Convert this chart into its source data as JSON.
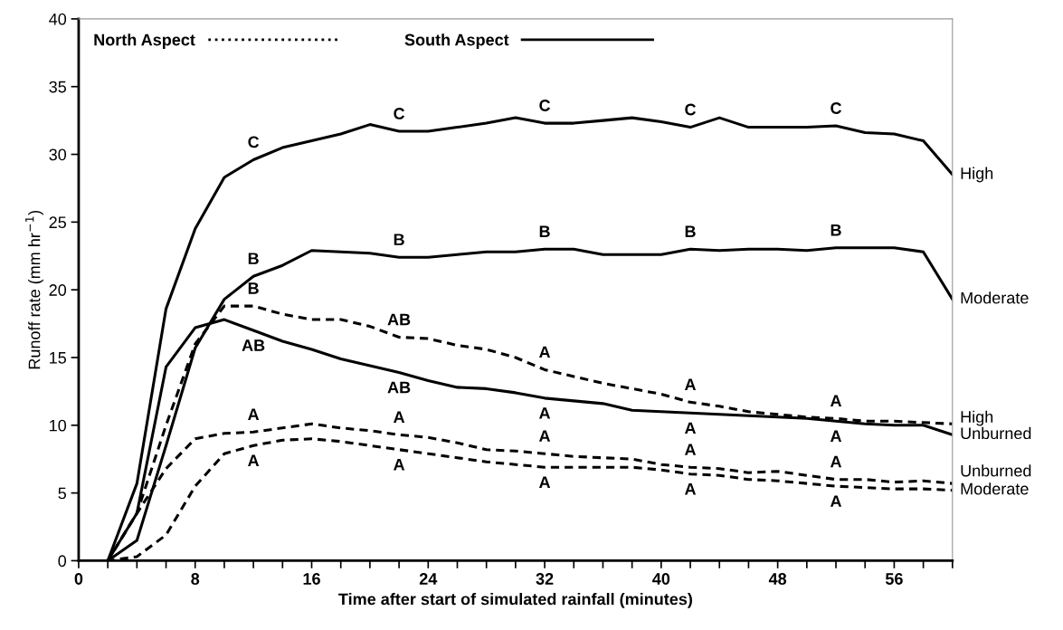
{
  "chart_data": {
    "type": "line",
    "xlabel": "Time after start of simulated rainfall (minutes)",
    "ylabel": "Runoff rate (mm hr$^{−1}$)",
    "x": [
      0,
      2,
      4,
      6,
      8,
      10,
      12,
      14,
      16,
      18,
      20,
      22,
      24,
      26,
      28,
      30,
      32,
      34,
      36,
      38,
      40,
      42,
      44,
      46,
      48,
      50,
      52,
      54,
      56,
      58,
      60
    ],
    "series": [
      {
        "name": "High",
        "color": "#000000",
        "line_style": "dashed",
        "values": [
          0,
          0,
          3.5,
          10,
          16,
          18.8,
          18.8,
          18.2,
          17.8,
          17.8,
          17.3,
          16.5,
          16.4,
          15.9,
          15.6,
          15.0,
          14.1,
          13.6,
          13.1,
          12.7,
          12.3,
          11.7,
          11.4,
          11.0,
          10.8,
          10.6,
          10.5,
          10.3,
          10.3,
          10.2,
          10.1
        ]
      },
      {
        "name": "Unburned",
        "color": "#000000",
        "line_style": "dashed",
        "values": [
          0,
          0,
          3.5,
          6.8,
          9.0,
          9.4,
          9.5,
          9.8,
          10.1,
          9.8,
          9.6,
          9.3,
          9.1,
          8.7,
          8.2,
          8.1,
          7.9,
          7.7,
          7.6,
          7.5,
          7.1,
          6.9,
          6.8,
          6.5,
          6.6,
          6.3,
          6.0,
          6.0,
          5.8,
          5.9,
          5.7
        ]
      },
      {
        "name": "Moderate",
        "color": "#000000",
        "line_style": "dashed",
        "values": [
          0,
          0,
          0.3,
          1.9,
          5.5,
          7.9,
          8.5,
          8.9,
          9.0,
          8.8,
          8.5,
          8.2,
          7.9,
          7.6,
          7.3,
          7.1,
          6.9,
          6.9,
          6.9,
          6.9,
          6.7,
          6.4,
          6.3,
          6.0,
          5.9,
          5.7,
          5.5,
          5.4,
          5.3,
          5.3,
          5.2
        ]
      },
      {
        "name": "High",
        "color": "#000000",
        "line_style": "solid",
        "values": [
          0,
          0,
          5.7,
          18.6,
          24.5,
          28.3,
          29.6,
          30.5,
          31.0,
          31.5,
          32.2,
          31.7,
          31.7,
          32.0,
          32.3,
          32.7,
          32.3,
          32.3,
          32.5,
          32.7,
          32.4,
          32.0,
          32.7,
          32.0,
          32.0,
          32.0,
          32.1,
          31.6,
          31.5,
          31.0,
          28.5
        ]
      },
      {
        "name": "Moderate",
        "color": "#000000",
        "line_style": "solid",
        "values": [
          0,
          0,
          1.5,
          8.5,
          15.7,
          19.3,
          21.0,
          21.8,
          22.9,
          22.8,
          22.7,
          22.4,
          22.4,
          22.6,
          22.8,
          22.8,
          23.0,
          23.0,
          22.6,
          22.6,
          22.6,
          23.0,
          22.9,
          23.0,
          23.0,
          22.9,
          23.1,
          23.1,
          23.1,
          22.8,
          19.3
        ]
      },
      {
        "name": "Unburned",
        "color": "#000000",
        "line_style": "solid",
        "values": [
          0,
          0,
          3.5,
          14.3,
          17.2,
          17.8,
          17.0,
          16.2,
          15.6,
          14.9,
          14.4,
          13.9,
          13.3,
          12.8,
          12.7,
          12.4,
          12.0,
          11.8,
          11.6,
          11.1,
          11.0,
          10.9,
          10.8,
          10.7,
          10.6,
          10.5,
          10.3,
          10.1,
          10.0,
          10.0,
          9.3
        ]
      }
    ],
    "xlim": [
      0,
      60
    ],
    "xticks": [
      0,
      {
        "value": 2,
        "label": null
      },
      {
        "value": 4,
        "label": null
      },
      {
        "value": 6,
        "label": null
      },
      8,
      {
        "value": 10,
        "label": null
      },
      {
        "value": 12,
        "label": null
      },
      {
        "value": 14,
        "label": null
      },
      16,
      {
        "value": 18,
        "label": null
      },
      {
        "value": 20,
        "label": null
      },
      {
        "value": 22,
        "label": null
      },
      24,
      {
        "value": 26,
        "label": null
      },
      {
        "value": 28,
        "label": null
      },
      {
        "value": 30,
        "label": null
      },
      32,
      {
        "value": 34,
        "label": null
      },
      {
        "value": 36,
        "label": null
      },
      {
        "value": 38,
        "label": null
      },
      40,
      {
        "value": 42,
        "label": null
      },
      {
        "value": 44,
        "label": null
      },
      {
        "value": 46,
        "label": null
      },
      48,
      {
        "value": 50,
        "label": null
      },
      {
        "value": 52,
        "label": null
      },
      {
        "value": 54,
        "label": null
      },
      56,
      {
        "value": 58,
        "label": null
      },
      {
        "value": 60,
        "label": null
      }
    ],
    "ylim": [
      0,
      40
    ],
    "yticks": [
      0,
      5,
      10,
      15,
      20,
      25,
      30,
      35,
      40
    ],
    "grid": false,
    "marker": "none",
    "annotations": [
      "North Aspect",
      "South Aspect",
      {
        "text": "C",
        "x": 12,
        "y": 29.6
      },
      {
        "text": "C",
        "x": 22,
        "y": 31.7
      },
      {
        "text": "C",
        "x": 32,
        "y": 32.3
      },
      {
        "text": "C",
        "x": 42,
        "y": 32.0
      },
      {
        "text": "C",
        "x": 52,
        "y": 32.1
      },
      {
        "text": "B",
        "x": 12,
        "y": 21.0
      },
      {
        "text": "B",
        "x": 22,
        "y": 22.4
      },
      {
        "text": "B",
        "x": 32,
        "y": 23.0
      },
      {
        "text": "B",
        "x": 42,
        "y": 23.0
      },
      {
        "text": "B",
        "x": 52,
        "y": 23.1
      },
      {
        "text": "B",
        "x": 12,
        "y": 18.8
      },
      {
        "text": "AB",
        "x": 22,
        "y": 16.5
      },
      {
        "text": "A",
        "x": 32,
        "y": 14.1
      },
      {
        "text": "A",
        "x": 42,
        "y": 11.7
      },
      {
        "text": "A",
        "x": 52,
        "y": 10.5
      },
      {
        "text": "AB",
        "x": 12,
        "y": 17.0
      },
      {
        "text": "AB",
        "x": 22,
        "y": 13.9
      },
      {
        "text": "A",
        "x": 32,
        "y": 12.0
      },
      {
        "text": "A",
        "x": 42,
        "y": 10.9
      },
      {
        "text": "A",
        "x": 52,
        "y": 10.3
      },
      {
        "text": "A",
        "x": 12,
        "y": 9.5
      },
      {
        "text": "A",
        "x": 22,
        "y": 9.3
      },
      {
        "text": "A",
        "x": 32,
        "y": 7.9
      },
      {
        "text": "A",
        "x": 42,
        "y": 6.9
      },
      {
        "text": "A",
        "x": 52,
        "y": 6.0
      },
      {
        "text": "A",
        "x": 12,
        "y": 8.5
      },
      {
        "text": "A",
        "x": 22,
        "y": 8.2
      },
      {
        "text": "A",
        "x": 32,
        "y": 6.9
      },
      {
        "text": "A",
        "x": 42,
        "y": 6.4
      },
      {
        "text": "A",
        "x": 52,
        "y": 5.5
      }
    ]
  }
}
